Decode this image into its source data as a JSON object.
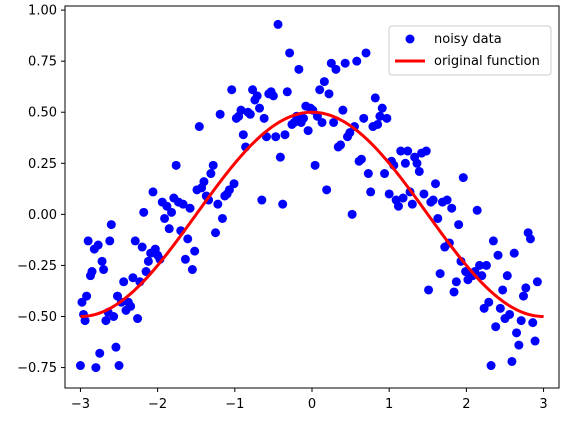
{
  "chart_data": {
    "type": "scatter",
    "title": "",
    "xlabel": "",
    "ylabel": "",
    "xlim": [
      -3.2,
      3.2
    ],
    "ylim": [
      -0.85,
      1.02
    ],
    "xticks": [
      -3,
      -2,
      -1,
      0,
      1,
      2,
      3
    ],
    "xtick_labels": [
      "−3",
      "−2",
      "−1",
      "0",
      "1",
      "2",
      "3"
    ],
    "yticks": [
      -0.75,
      -0.5,
      -0.25,
      0.0,
      0.25,
      0.5,
      0.75,
      1.0
    ],
    "ytick_labels": [
      "−0.75",
      "−0.50",
      "−0.25",
      "0.00",
      "0.25",
      "0.50",
      "0.75",
      "1.00"
    ],
    "grid": false,
    "legend_position": "upper right",
    "series": [
      {
        "name": "noisy data",
        "kind": "scatter",
        "color": "#0000ff",
        "marker": "circle",
        "points": [
          [
            -3.0,
            -0.74
          ],
          [
            -2.98,
            -0.43
          ],
          [
            -2.96,
            -0.49
          ],
          [
            -2.94,
            -0.52
          ],
          [
            -2.92,
            -0.4
          ],
          [
            -2.9,
            -0.13
          ],
          [
            -2.87,
            -0.3
          ],
          [
            -2.85,
            -0.28
          ],
          [
            -2.82,
            -0.17
          ],
          [
            -2.8,
            -0.75
          ],
          [
            -2.77,
            -0.15
          ],
          [
            -2.75,
            -0.68
          ],
          [
            -2.72,
            -0.23
          ],
          [
            -2.7,
            -0.27
          ],
          [
            -2.67,
            -0.52
          ],
          [
            -2.64,
            -0.48
          ],
          [
            -2.62,
            -0.13
          ],
          [
            -2.6,
            -0.05
          ],
          [
            -2.57,
            -0.5
          ],
          [
            -2.54,
            -0.65
          ],
          [
            -2.52,
            -0.4
          ],
          [
            -2.5,
            -0.74
          ],
          [
            -2.47,
            -0.43
          ],
          [
            -2.44,
            -0.33
          ],
          [
            -2.41,
            -0.47
          ],
          [
            -2.38,
            -0.43
          ],
          [
            -2.35,
            -0.45
          ],
          [
            -2.32,
            -0.31
          ],
          [
            -2.29,
            -0.13
          ],
          [
            -2.26,
            -0.51
          ],
          [
            -2.23,
            -0.33
          ],
          [
            -2.2,
            -0.16
          ],
          [
            -2.18,
            0.01
          ],
          [
            -2.15,
            -0.28
          ],
          [
            -2.12,
            -0.23
          ],
          [
            -2.09,
            -0.19
          ],
          [
            -2.06,
            0.11
          ],
          [
            -2.03,
            -0.17
          ],
          [
            -2.0,
            -0.2
          ],
          [
            -1.97,
            -0.22
          ],
          [
            -1.94,
            0.06
          ],
          [
            -1.91,
            -0.02
          ],
          [
            -1.88,
            0.04
          ],
          [
            -1.85,
            -0.07
          ],
          [
            -1.82,
            0.01
          ],
          [
            -1.79,
            0.08
          ],
          [
            -1.76,
            0.24
          ],
          [
            -1.73,
            0.06
          ],
          [
            -1.7,
            -0.08
          ],
          [
            -1.67,
            0.05
          ],
          [
            -1.64,
            -0.22
          ],
          [
            -1.61,
            -0.12
          ],
          [
            -1.58,
            0.03
          ],
          [
            -1.55,
            -0.27
          ],
          [
            -1.52,
            -0.18
          ],
          [
            -1.49,
            0.12
          ],
          [
            -1.46,
            0.43
          ],
          [
            -1.43,
            0.13
          ],
          [
            -1.4,
            0.16
          ],
          [
            -1.37,
            0.09
          ],
          [
            -1.34,
            0.07
          ],
          [
            -1.31,
            0.2
          ],
          [
            -1.28,
            0.24
          ],
          [
            -1.25,
            -0.09
          ],
          [
            -1.22,
            0.05
          ],
          [
            -1.19,
            0.49
          ],
          [
            -1.16,
            -0.02
          ],
          [
            -1.13,
            0.09
          ],
          [
            -1.1,
            0.1
          ],
          [
            -1.07,
            0.12
          ],
          [
            -1.04,
            0.61
          ],
          [
            -1.01,
            0.15
          ],
          [
            -0.98,
            0.47
          ],
          [
            -0.95,
            0.48
          ],
          [
            -0.92,
            0.51
          ],
          [
            -0.89,
            0.39
          ],
          [
            -0.86,
            0.33
          ],
          [
            -0.83,
            0.5
          ],
          [
            -0.8,
            0.49
          ],
          [
            -0.77,
            0.61
          ],
          [
            -0.74,
            0.56
          ],
          [
            -0.71,
            0.58
          ],
          [
            -0.68,
            0.52
          ],
          [
            -0.65,
            0.07
          ],
          [
            -0.62,
            0.47
          ],
          [
            -0.59,
            0.38
          ],
          [
            -0.56,
            0.59
          ],
          [
            -0.53,
            0.6
          ],
          [
            -0.5,
            0.58
          ],
          [
            -0.47,
            0.38
          ],
          [
            -0.44,
            0.93
          ],
          [
            -0.41,
            0.28
          ],
          [
            -0.38,
            0.05
          ],
          [
            -0.35,
            0.39
          ],
          [
            -0.32,
            0.6
          ],
          [
            -0.29,
            0.79
          ],
          [
            -0.26,
            0.44
          ],
          [
            -0.23,
            0.45
          ],
          [
            -0.2,
            0.48
          ],
          [
            -0.17,
            0.71
          ],
          [
            -0.14,
            0.45
          ],
          [
            -0.11,
            0.47
          ],
          [
            -0.08,
            0.53
          ],
          [
            -0.05,
            0.41
          ],
          [
            -0.02,
            0.52
          ],
          [
            0.01,
            0.51
          ],
          [
            0.04,
            0.24
          ],
          [
            0.07,
            0.48
          ],
          [
            0.1,
            0.61
          ],
          [
            0.13,
            0.45
          ],
          [
            0.16,
            0.65
          ],
          [
            0.19,
            0.12
          ],
          [
            0.22,
            0.59
          ],
          [
            0.25,
            0.74
          ],
          [
            0.28,
            0.45
          ],
          [
            0.31,
            0.71
          ],
          [
            0.34,
            0.33
          ],
          [
            0.37,
            0.34
          ],
          [
            0.4,
            0.51
          ],
          [
            0.43,
            0.74
          ],
          [
            0.46,
            0.38
          ],
          [
            0.49,
            0.4
          ],
          [
            0.52,
            0.0
          ],
          [
            0.55,
            0.43
          ],
          [
            0.58,
            0.75
          ],
          [
            0.61,
            0.26
          ],
          [
            0.64,
            0.27
          ],
          [
            0.67,
            0.47
          ],
          [
            0.7,
            0.79
          ],
          [
            0.73,
            0.2
          ],
          [
            0.76,
            0.11
          ],
          [
            0.79,
            0.43
          ],
          [
            0.82,
            0.57
          ],
          [
            0.85,
            0.44
          ],
          [
            0.88,
            0.48
          ],
          [
            0.91,
            0.52
          ],
          [
            0.94,
            0.2
          ],
          [
            0.97,
            0.47
          ],
          [
            1.0,
            0.1
          ],
          [
            1.03,
            0.26
          ],
          [
            1.06,
            0.24
          ],
          [
            1.09,
            0.07
          ],
          [
            1.12,
            0.04
          ],
          [
            1.15,
            0.31
          ],
          [
            1.18,
            0.08
          ],
          [
            1.21,
            0.25
          ],
          [
            1.24,
            0.31
          ],
          [
            1.27,
            0.11
          ],
          [
            1.3,
            0.05
          ],
          [
            1.33,
            0.28
          ],
          [
            1.36,
            0.25
          ],
          [
            1.39,
            0.21
          ],
          [
            1.42,
            0.3
          ],
          [
            1.45,
            0.1
          ],
          [
            1.48,
            0.31
          ],
          [
            1.51,
            -0.37
          ],
          [
            1.54,
            0.06
          ],
          [
            1.57,
            0.07
          ],
          [
            1.6,
            0.15
          ],
          [
            1.63,
            -0.02
          ],
          [
            1.66,
            -0.29
          ],
          [
            1.69,
            0.06
          ],
          [
            1.72,
            -0.16
          ],
          [
            1.75,
            0.07
          ],
          [
            1.78,
            -0.14
          ],
          [
            1.81,
            0.03
          ],
          [
            1.84,
            -0.38
          ],
          [
            1.87,
            -0.33
          ],
          [
            1.9,
            -0.05
          ],
          [
            1.93,
            -0.23
          ],
          [
            1.96,
            0.18
          ],
          [
            1.99,
            -0.28
          ],
          [
            2.02,
            -0.32
          ],
          [
            2.05,
            -0.3
          ],
          [
            2.08,
            -0.3
          ],
          [
            2.11,
            -0.28
          ],
          [
            2.14,
            0.02
          ],
          [
            2.17,
            -0.25
          ],
          [
            2.2,
            -0.3
          ],
          [
            2.23,
            -0.46
          ],
          [
            2.26,
            -0.25
          ],
          [
            2.29,
            -0.43
          ],
          [
            2.32,
            -0.74
          ],
          [
            2.35,
            -0.13
          ],
          [
            2.38,
            -0.55
          ],
          [
            2.41,
            -0.2
          ],
          [
            2.44,
            -0.46
          ],
          [
            2.47,
            -0.37
          ],
          [
            2.5,
            -0.51
          ],
          [
            2.53,
            -0.3
          ],
          [
            2.56,
            -0.49
          ],
          [
            2.59,
            -0.72
          ],
          [
            2.62,
            -0.19
          ],
          [
            2.65,
            -0.58
          ],
          [
            2.68,
            -0.64
          ],
          [
            2.71,
            -0.52
          ],
          [
            2.74,
            -0.4
          ],
          [
            2.77,
            -0.36
          ],
          [
            2.8,
            -0.09
          ],
          [
            2.83,
            -0.12
          ],
          [
            2.86,
            -0.53
          ],
          [
            2.89,
            -0.62
          ],
          [
            2.92,
            -0.33
          ]
        ]
      },
      {
        "name": "original function",
        "kind": "line",
        "color": "#ff0000",
        "function": "0.5*cos(pi*x/3)",
        "xrange": [
          -3,
          3
        ]
      }
    ]
  }
}
